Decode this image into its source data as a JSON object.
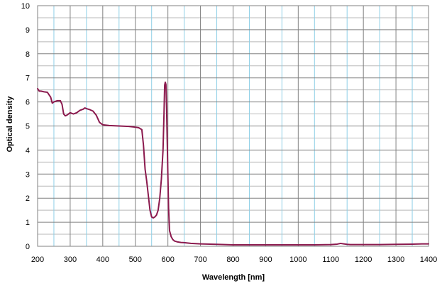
{
  "chart_data": {
    "type": "line",
    "title": "",
    "xlabel": "Wavelength [nm]",
    "ylabel": "Optical density",
    "xlim": [
      200,
      1400
    ],
    "ylim": [
      0,
      10
    ],
    "x_ticks": [
      200,
      300,
      400,
      500,
      600,
      700,
      800,
      900,
      1000,
      1100,
      1200,
      1300,
      1400
    ],
    "x_tick_labels": [
      "200",
      "300",
      "400",
      "500",
      "600",
      "700",
      "800",
      "900",
      "1000",
      "1100",
      "1200",
      "1300",
      "1400"
    ],
    "y_ticks": [
      0,
      1,
      2,
      3,
      4,
      5,
      6,
      7,
      8,
      9,
      10
    ],
    "y_tick_labels": [
      "0",
      "1",
      "2",
      "3",
      "4",
      "5",
      "6",
      "7",
      "8",
      "9",
      "10"
    ],
    "grid": true,
    "x_minor_grid_step": 50,
    "y_minor_grid_step": 0.5,
    "legend": "none",
    "colors": {
      "line": "#8b1a4e",
      "major_grid": "#808080",
      "minor_grid_x": "#8ecfe6",
      "minor_grid_y": "#b8b8b8",
      "axis": "#808080"
    },
    "series": [
      {
        "x": [
          200,
          205,
          210,
          220,
          230,
          240,
          245,
          250,
          260,
          270,
          275,
          280,
          285,
          290,
          300,
          310,
          320,
          330,
          340,
          345,
          350,
          360,
          370,
          380,
          385,
          390,
          400,
          420,
          450,
          480,
          500,
          510,
          520,
          525,
          530,
          535,
          540,
          545,
          550,
          555,
          560,
          565,
          570,
          575,
          580,
          585,
          588,
          590,
          592,
          594,
          596,
          598,
          600,
          602,
          605,
          610,
          615,
          620,
          630,
          640,
          650,
          670,
          700,
          750,
          800,
          850,
          900,
          950,
          1000,
          1050,
          1100,
          1120,
          1130,
          1140,
          1150,
          1160,
          1180,
          1200,
          1250,
          1300,
          1350,
          1380,
          1400
        ],
        "y": [
          6.55,
          6.45,
          6.45,
          6.42,
          6.4,
          6.2,
          5.95,
          6.0,
          6.05,
          6.05,
          5.9,
          5.5,
          5.42,
          5.45,
          5.55,
          5.5,
          5.55,
          5.65,
          5.7,
          5.75,
          5.72,
          5.68,
          5.62,
          5.45,
          5.3,
          5.15,
          5.05,
          5.02,
          5.0,
          4.98,
          4.95,
          4.93,
          4.85,
          4.2,
          3.2,
          2.7,
          2.1,
          1.5,
          1.22,
          1.18,
          1.22,
          1.3,
          1.5,
          2.0,
          2.8,
          4.0,
          5.5,
          6.7,
          6.82,
          6.72,
          5.7,
          4.3,
          2.9,
          1.6,
          0.65,
          0.4,
          0.28,
          0.22,
          0.18,
          0.16,
          0.15,
          0.12,
          0.1,
          0.08,
          0.06,
          0.06,
          0.06,
          0.06,
          0.06,
          0.06,
          0.07,
          0.09,
          0.12,
          0.1,
          0.08,
          0.07,
          0.07,
          0.07,
          0.07,
          0.08,
          0.09,
          0.1,
          0.1
        ]
      }
    ]
  }
}
